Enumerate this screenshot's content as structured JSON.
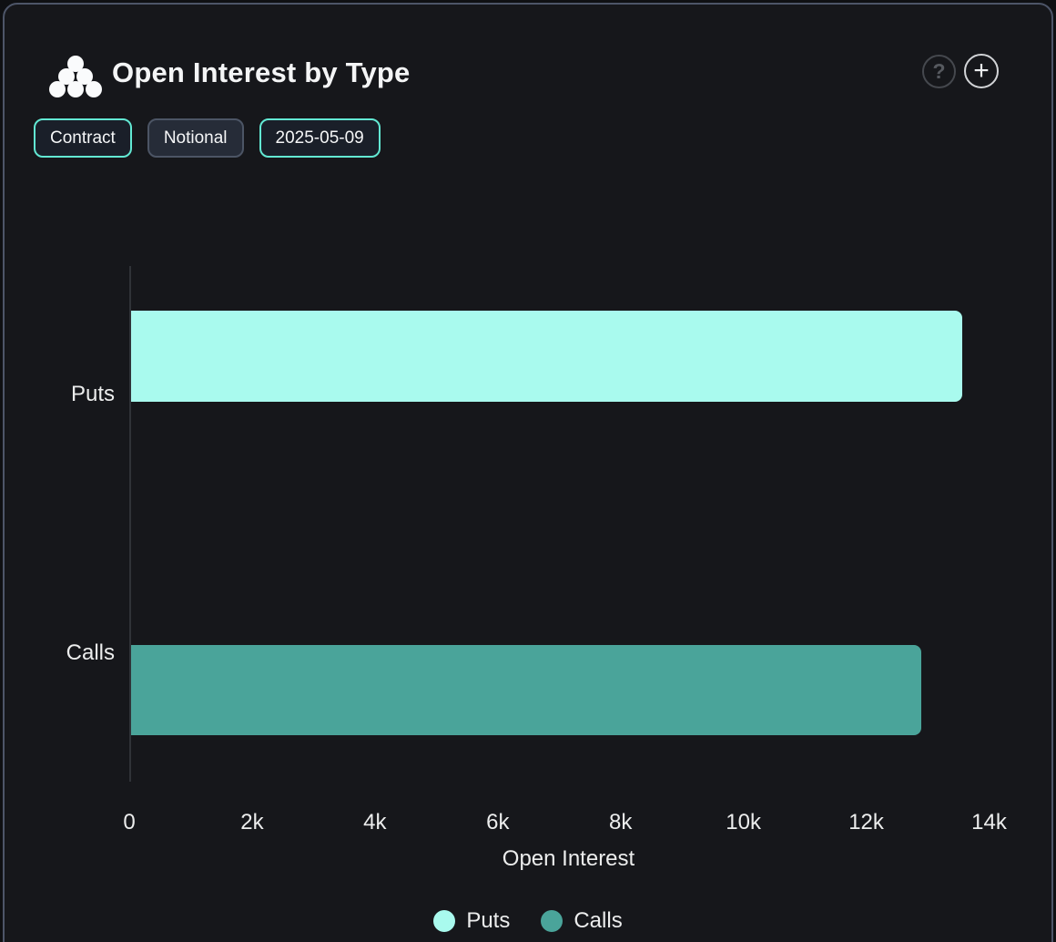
{
  "header": {
    "title": "Open Interest by Type",
    "help_glyph": "?",
    "add_glyph": "+"
  },
  "toolbar": {
    "buttons": [
      {
        "label": "Contract",
        "active": true
      },
      {
        "label": "Notional",
        "active": false
      },
      {
        "label": "2025-05-09",
        "active": true
      }
    ]
  },
  "chart_data": {
    "type": "bar",
    "orientation": "horizontal",
    "title": "Open Interest by Type",
    "categories": [
      "Puts",
      "Calls"
    ],
    "values": [
      13560,
      12900
    ],
    "colors": [
      "#a9faee",
      "#4aa49a"
    ],
    "xlabel": "Open Interest",
    "ylabel": "",
    "xlim": [
      0,
      14000
    ],
    "xticks": [
      {
        "label": "0",
        "value": 0
      },
      {
        "label": "2k",
        "value": 2000
      },
      {
        "label": "4k",
        "value": 4000
      },
      {
        "label": "6k",
        "value": 6000
      },
      {
        "label": "8k",
        "value": 8000
      },
      {
        "label": "10k",
        "value": 10000
      },
      {
        "label": "12k",
        "value": 12000
      },
      {
        "label": "14k",
        "value": 14000
      }
    ],
    "legend": [
      {
        "label": "Puts",
        "color": "#a9faee"
      },
      {
        "label": "Calls",
        "color": "#4aa49a"
      }
    ],
    "legend_position": "bottom",
    "grid": false
  },
  "colors": {
    "background": "#0f1013",
    "card_background": "#16171b",
    "card_border": "#4d5568",
    "accent_teal": "#62e8d3",
    "text": "#eceded"
  }
}
